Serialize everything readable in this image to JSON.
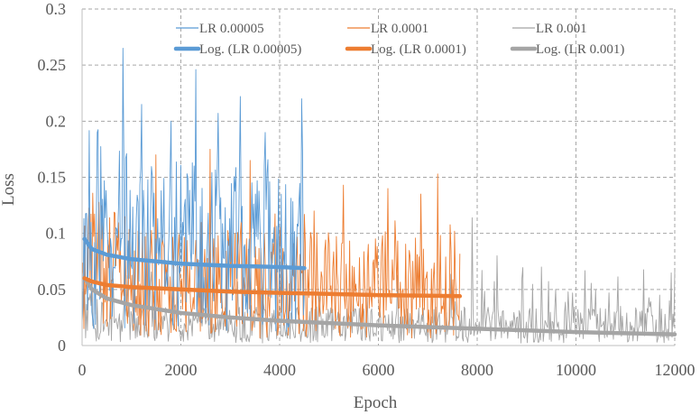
{
  "chart_data": {
    "type": "line",
    "xlabel": "Epoch",
    "ylabel": "Loss",
    "xlim": [
      0,
      12000
    ],
    "ylim": [
      0,
      0.3
    ],
    "xticks": [
      0,
      2000,
      4000,
      6000,
      8000,
      10000,
      12000
    ],
    "yticks": [
      0,
      0.05,
      0.1,
      0.15,
      0.2,
      0.25,
      0.3
    ],
    "xtick_labels": [
      "0",
      "2000",
      "4000",
      "6000",
      "8000",
      "10000",
      "12000"
    ],
    "ytick_labels": [
      "0",
      "0.05",
      "0.1",
      "0.15",
      "0.2",
      "0.25",
      "0.3"
    ],
    "grid": "dashed",
    "legend_position": "top",
    "series": [
      {
        "name": "LR 0.00005",
        "color": "#5b9bd5",
        "style": "noisy-thin",
        "x_end": 4500,
        "summary": {
          "baseline": 0.07,
          "min": 0.005,
          "max": 0.265
        },
        "peaks": [
          [
            830,
            0.265
          ],
          [
            2300,
            0.246
          ],
          [
            1200,
            0.215
          ],
          [
            3200,
            0.222
          ],
          [
            4450,
            0.22
          ],
          [
            300,
            0.19
          ],
          [
            2750,
            0.207
          ],
          [
            1800,
            0.2
          ],
          [
            3700,
            0.19
          ]
        ]
      },
      {
        "name": "LR 0.0001",
        "color": "#ed7d31",
        "style": "noisy-thin",
        "x_end": 7650,
        "summary": {
          "baseline": 0.045,
          "min": 0.003,
          "max": 0.18
        },
        "peaks": [
          [
            2600,
            0.175
          ],
          [
            1500,
            0.17
          ],
          [
            7200,
            0.153
          ],
          [
            5300,
            0.143
          ],
          [
            6200,
            0.14
          ],
          [
            6850,
            0.135
          ],
          [
            4700,
            0.12
          ],
          [
            3400,
            0.165
          ]
        ]
      },
      {
        "name": "LR 0.001",
        "color": "#a5a5a5",
        "style": "noisy-thin",
        "x_end": 12000,
        "summary": {
          "baseline": 0.015,
          "min": 0.001,
          "max": 0.115
        },
        "peaks": [
          [
            7900,
            0.114
          ],
          [
            8400,
            0.08
          ],
          [
            9300,
            0.07
          ],
          [
            8900,
            0.06
          ],
          [
            10400,
            0.05
          ],
          [
            11700,
            0.045
          ],
          [
            10900,
            0.035
          ],
          [
            11900,
            0.04
          ]
        ]
      },
      {
        "name": "Log. (LR 0.00005)",
        "color": "#5b9bd5",
        "style": "trend-thick",
        "x": [
          50,
          200,
          500,
          1000,
          1500,
          2000,
          2500,
          3000,
          3500,
          4000,
          4500
        ],
        "y": [
          0.095,
          0.086,
          0.081,
          0.077,
          0.075,
          0.073,
          0.072,
          0.071,
          0.0705,
          0.07,
          0.069
        ]
      },
      {
        "name": "Log. (LR 0.0001)",
        "color": "#ed7d31",
        "style": "trend-thick",
        "x": [
          50,
          200,
          500,
          1000,
          2000,
          3000,
          4000,
          5000,
          6000,
          7000,
          7650
        ],
        "y": [
          0.06,
          0.057,
          0.054,
          0.052,
          0.05,
          0.048,
          0.047,
          0.046,
          0.045,
          0.0445,
          0.044
        ]
      },
      {
        "name": "Log. (LR 0.001)",
        "color": "#a5a5a5",
        "style": "trend-thick",
        "x": [
          50,
          200,
          500,
          1000,
          2000,
          3000,
          4000,
          6000,
          8000,
          10000,
          12000
        ],
        "y": [
          0.06,
          0.05,
          0.042,
          0.036,
          0.029,
          0.025,
          0.022,
          0.018,
          0.015,
          0.012,
          0.01
        ]
      }
    ]
  }
}
